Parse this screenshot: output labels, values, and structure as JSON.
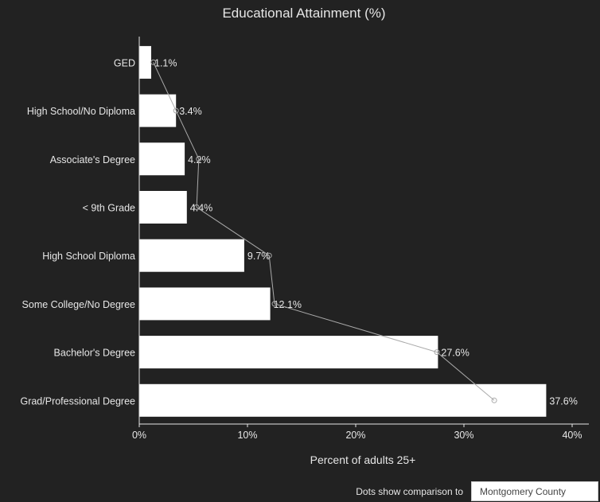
{
  "chart_data": {
    "type": "bar",
    "orientation": "horizontal",
    "title": "Educational Attainment (%)",
    "xlabel": "Percent of adults 25+",
    "ylabel": "",
    "xlim": [
      0,
      40
    ],
    "x_ticks": [
      0,
      10,
      20,
      30,
      40
    ],
    "x_tick_labels": [
      "0%",
      "10%",
      "20%",
      "30%",
      "40%"
    ],
    "categories": [
      "GED",
      "High School/No Diploma",
      "Associate's Degree",
      "< 9th Grade",
      "High School Diploma",
      "Some College/No Degree",
      "Bachelor's Degree",
      "Grad/Professional Degree"
    ],
    "values": [
      1.1,
      3.4,
      4.2,
      4.4,
      9.7,
      12.1,
      27.6,
      37.6
    ],
    "value_labels": [
      "1.1%",
      "3.4%",
      "4.2%",
      "4.4%",
      "9.7%",
      "12.1%",
      "27.6%",
      "37.6%"
    ],
    "comparison_values": [
      1.3,
      3.4,
      5.5,
      5.3,
      12.0,
      12.5,
      27.5,
      32.8
    ],
    "grid": false
  },
  "footer": {
    "comparison_label": "Dots show comparison to",
    "comparison_selected": "Montgomery County"
  },
  "colors": {
    "background": "#222222",
    "bar": "#ffffff",
    "text": "#e6e6e6",
    "axis": "#e6e6e6",
    "comparison_line": "#aaaaaa"
  }
}
